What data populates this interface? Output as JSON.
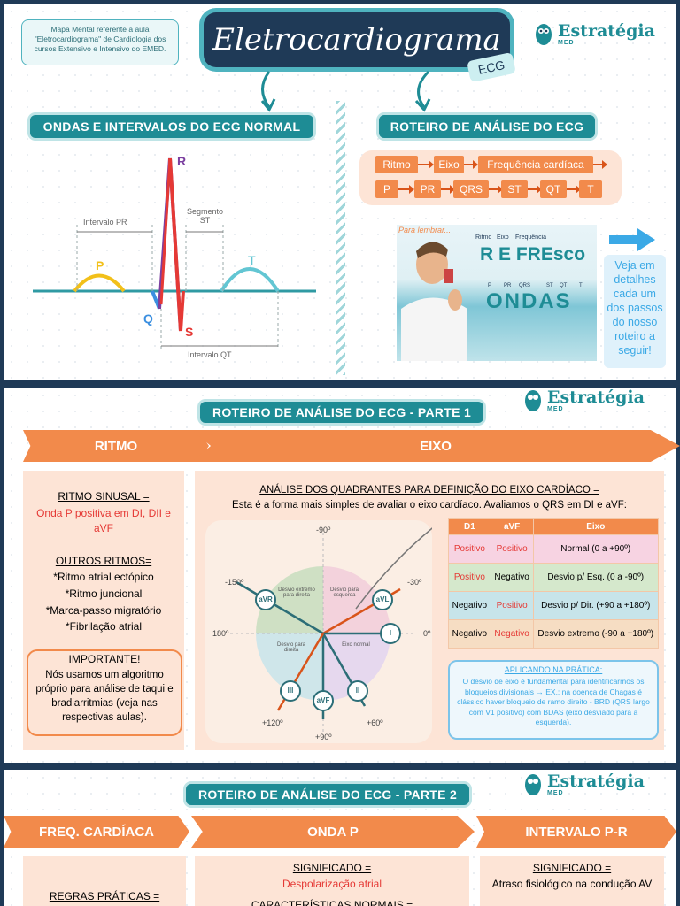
{
  "header": {
    "note": "Mapa Mental referente à aula \"Eletrocardiograma\" de Cardiologia dos cursos Extensivo e Intensivo do EMED.",
    "title": "Eletrocardiograma",
    "tag": "ECG",
    "logo_name": "Estratégia",
    "logo_sub": "MED"
  },
  "left_section": {
    "title": "ONDAS E INTERVALOS DO ECG NORMAL",
    "labels": {
      "r": "R",
      "p": "P",
      "q": "Q",
      "s": "S",
      "t": "T",
      "pr": "Intervalo PR",
      "st": "Segmento ST",
      "qt": "Intervalo QT"
    }
  },
  "right_section": {
    "title": "ROTEIRO DE ANÁLISE DO ECG",
    "row1": [
      "Ritmo",
      "Eixo",
      "Frequência cardíaca"
    ],
    "row2": [
      "P",
      "PR",
      "QRS",
      "ST",
      "QT",
      "T"
    ],
    "remember": "Para lembrar...",
    "mnemonic_top": [
      "Ritmo",
      "Eixo",
      "Frequência"
    ],
    "mnemonic_word": "R E FREsco",
    "mnemonic_small": [
      "P",
      "PR",
      "QRS",
      "ST",
      "QT",
      "T"
    ],
    "mnemonic_word2": "ONDAS",
    "side_text": "Veja em detalhes cada um dos passos do nosso roteiro a seguir!"
  },
  "part1": {
    "title": "ROTEIRO DE ANÁLISE DO ECG - PARTE 1",
    "bar_left": "RITMO",
    "bar_right": "EIXO",
    "ritmo": {
      "h1": "RITMO SINUSAL =",
      "h1_text": "Onda P positiva em DI, DII e aVF",
      "h2": "OUTROS RITMOS=",
      "items": [
        "*Ritmo atrial ectópico",
        "*Ritmo juncional",
        "*Marca-passo migratório",
        "*Fibrilação atrial"
      ],
      "important_title": "IMPORTANTE!",
      "important_text": "Nós usamos um algoritmo próprio para análise de taqui e bradiarritmias (veja nas respectivas aulas)."
    },
    "eixo": {
      "heading": "ANÁLISE DOS QUADRANTES PARA DEFINIÇÃO DO EIXO CARDÍACO =",
      "sub": "Esta é a forma mais simples de avaliar o eixo cardíaco. Avaliamos o QRS em DI e aVF:",
      "angles": {
        "top": "-90º",
        "tl": "-150º",
        "tr": "-30º",
        "left": "180º",
        "right": "0º",
        "bl": "+120º",
        "bottom": "+90º",
        "br": "+60º"
      },
      "leads": [
        "aVR",
        "aVL",
        "I",
        "II",
        "aVF",
        "III"
      ],
      "quadrants": [
        "Desvio extremo para direita",
        "Desvio para esquerda",
        "Desvio para direita",
        "Eixo normal"
      ],
      "table_headers": [
        "D1",
        "aVF",
        "Eixo"
      ],
      "table_rows": [
        [
          "Positivo",
          "Positivo",
          "Normal (0 a +90º)"
        ],
        [
          "Positivo",
          "Negativo",
          "Desvio p/ Esq. (0 a -90º)"
        ],
        [
          "Negativo",
          "Positivo",
          "Desvio p/ Dir. (+90 a +180º)"
        ],
        [
          "Negativo",
          "Negativo",
          "Desvio extremo (-90 a +180º)"
        ]
      ],
      "pratica_title": "APLICANDO NA PRÁTICA:",
      "pratica_text": "O desvio de eixo é fundamental para identificarmos os bloqueios divisionais → EX.: na doença de Chagas é clássico haver bloqueio de ramo direito - BRD (QRS largo com V1 positivo) com BDAS (eixo desviado para a esquerda)."
    }
  },
  "part2": {
    "title": "ROTEIRO DE ANÁLISE DO ECG - PARTE 2",
    "bars": [
      "FREQ. CARDÍACA",
      "ONDA P",
      "INTERVALO P-R"
    ],
    "freq_h": "REGRAS PRÁTICAS =",
    "p_h": "SIGNIFICADO =",
    "p_text": "Despolarização atrial",
    "p_h2": "CARACTERÍSTICAS NORMAIS =",
    "pr_h": "SIGNIFICADO =",
    "pr_text": "Atraso fisiológico na condução AV"
  }
}
